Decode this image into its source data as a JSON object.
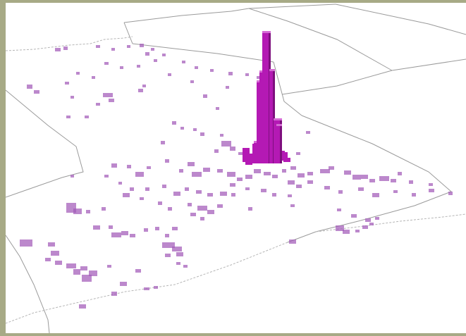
{
  "colors": {
    "frame": "#a7aa86",
    "background": "#ffffff",
    "boundary": "#9a9a9a",
    "density_cell": "#a25ab8",
    "spike_front": "#b419b4",
    "spike_side": "#7d0f7d",
    "spike_top": "#d56ad5"
  },
  "map": {
    "type": "3d-density-prism-map",
    "legend": "none",
    "labels": "none"
  }
}
